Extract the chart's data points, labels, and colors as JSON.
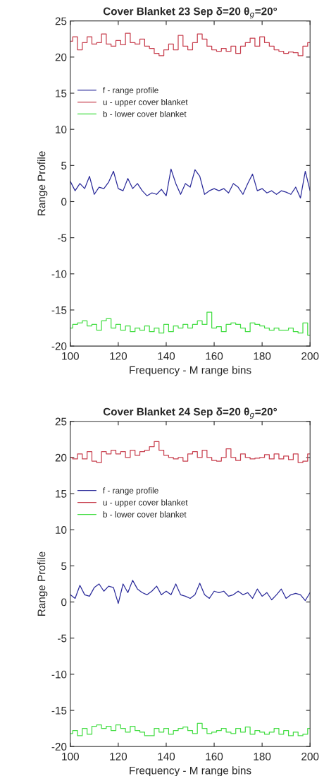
{
  "chart_data": [
    {
      "type": "line",
      "title": "Cover Blanket 23 Sep δ=20 θ$_{g}$=20°",
      "xlabel": "Frequency - M range bins",
      "ylabel": "Range Profile",
      "x": [
        100,
        102,
        104,
        106,
        108,
        110,
        112,
        114,
        116,
        118,
        120,
        122,
        124,
        126,
        128,
        130,
        132,
        134,
        136,
        138,
        140,
        142,
        144,
        146,
        148,
        150,
        152,
        154,
        156,
        158,
        160,
        162,
        164,
        166,
        168,
        170,
        172,
        174,
        176,
        178,
        180,
        182,
        184,
        186,
        188,
        190,
        192,
        194,
        196,
        198,
        200
      ],
      "series": [
        {
          "name": "f - range profile",
          "color": "#2b2b9a",
          "values": [
            2.8,
            1.5,
            2.5,
            1.8,
            3.5,
            1.0,
            2.0,
            1.8,
            2.7,
            4.2,
            1.8,
            1.5,
            3.2,
            1.8,
            2.5,
            1.5,
            0.8,
            1.2,
            1.0,
            1.7,
            0.8,
            4.5,
            2.5,
            1.0,
            2.5,
            2.0,
            4.4,
            3.5,
            1.0,
            1.5,
            1.8,
            1.5,
            1.8,
            1.2,
            2.5,
            2.0,
            1.0,
            2.5,
            3.8,
            1.5,
            1.8,
            1.2,
            1.5,
            1.0,
            1.5,
            1.3,
            1.0,
            2.0,
            0.5,
            4.2,
            1.5
          ]
        },
        {
          "name": "u - upper cover blanket",
          "type": "step",
          "color": "#c8404f",
          "values": [
            22.2,
            22.8,
            21.0,
            22.0,
            22.8,
            21.8,
            22.0,
            23.2,
            21.8,
            21.5,
            22.3,
            21.7,
            23.3,
            22.0,
            21.8,
            22.5,
            21.5,
            21.2,
            20.5,
            20.2,
            21.0,
            21.8,
            21.0,
            23.0,
            21.5,
            21.0,
            22.0,
            23.2,
            22.5,
            21.5,
            21.0,
            20.8,
            21.2,
            20.8,
            21.5,
            20.5,
            21.5,
            22.0,
            22.6,
            21.5,
            22.8,
            22.0,
            21.5,
            21.0,
            20.8,
            20.5,
            20.7,
            20.6,
            20.2,
            21.5,
            22.0
          ]
        },
        {
          "name": "b - lower cover blanket",
          "type": "step",
          "color": "#44dd44",
          "values": [
            -17.5,
            -17.0,
            -16.8,
            -16.5,
            -17.2,
            -17.0,
            -17.8,
            -16.5,
            -16.2,
            -17.5,
            -17.0,
            -17.8,
            -17.2,
            -18.0,
            -17.5,
            -17.8,
            -17.2,
            -18.0,
            -17.5,
            -18.2,
            -17.0,
            -18.0,
            -17.2,
            -17.5,
            -17.0,
            -17.5,
            -17.0,
            -16.5,
            -17.0,
            -15.3,
            -17.5,
            -17.3,
            -18.0,
            -17.0,
            -16.8,
            -17.0,
            -17.5,
            -18.0,
            -16.8,
            -17.0,
            -17.2,
            -17.5,
            -17.8,
            -17.5,
            -17.8,
            -17.8,
            -17.5,
            -18.0,
            -18.2,
            -16.8,
            -18.5
          ]
        }
      ],
      "xlim": [
        100,
        200
      ],
      "xticks": [
        100,
        120,
        140,
        160,
        180,
        200
      ],
      "ylim": [
        -20,
        25
      ],
      "yticks": [
        -20,
        -15,
        -10,
        -5,
        0,
        5,
        10,
        15,
        20,
        25
      ],
      "grid": false,
      "legend": "top left"
    },
    {
      "type": "line",
      "title": "Cover Blanket 24 Sep δ=20 θ$_{g}$=20°",
      "xlabel": "Frequency - M range bins",
      "ylabel": "Range Profile",
      "x": [
        100,
        102,
        104,
        106,
        108,
        110,
        112,
        114,
        116,
        118,
        120,
        122,
        124,
        126,
        128,
        130,
        132,
        134,
        136,
        138,
        140,
        142,
        144,
        146,
        148,
        150,
        152,
        154,
        156,
        158,
        160,
        162,
        164,
        166,
        168,
        170,
        172,
        174,
        176,
        178,
        180,
        182,
        184,
        186,
        188,
        190,
        192,
        194,
        196,
        198,
        200
      ],
      "series": [
        {
          "name": "f - range profile",
          "color": "#2b2b9a",
          "values": [
            1.0,
            0.5,
            2.3,
            1.0,
            0.8,
            2.0,
            2.5,
            1.5,
            2.2,
            2.0,
            -0.2,
            2.5,
            1.3,
            3.0,
            1.8,
            1.3,
            1.0,
            1.5,
            2.2,
            1.0,
            1.5,
            1.0,
            2.5,
            1.0,
            0.8,
            0.5,
            1.0,
            2.6,
            1.0,
            0.5,
            1.5,
            1.3,
            1.5,
            0.8,
            1.0,
            1.5,
            1.0,
            1.3,
            0.5,
            1.8,
            0.8,
            1.3,
            0.3,
            1.0,
            1.8,
            0.5,
            1.0,
            1.2,
            1.0,
            0.2,
            1.3
          ]
        },
        {
          "name": "u - upper cover blanket",
          "type": "step",
          "color": "#c8404f",
          "values": [
            20.0,
            19.8,
            20.5,
            19.8,
            20.8,
            19.5,
            19.3,
            20.8,
            20.5,
            21.0,
            20.5,
            20.8,
            20.0,
            21.0,
            20.3,
            20.8,
            21.0,
            21.5,
            22.2,
            21.0,
            20.3,
            20.0,
            19.8,
            20.0,
            19.5,
            20.5,
            20.8,
            20.0,
            21.0,
            20.0,
            19.6,
            19.5,
            20.0,
            21.2,
            20.0,
            19.6,
            20.5,
            20.0,
            19.8,
            19.9,
            20.0,
            20.4,
            19.8,
            20.5,
            19.8,
            20.2,
            19.7,
            20.5,
            19.3,
            19.5,
            20.5
          ]
        },
        {
          "name": "b - lower cover blanket",
          "type": "step",
          "color": "#44dd44",
          "values": [
            -18.2,
            -17.8,
            -18.5,
            -17.5,
            -18.3,
            -17.2,
            -17.0,
            -17.5,
            -17.2,
            -17.8,
            -17.0,
            -17.5,
            -18.0,
            -17.2,
            -17.8,
            -18.0,
            -18.5,
            -18.5,
            -17.5,
            -18.0,
            -17.5,
            -18.3,
            -17.8,
            -17.5,
            -17.3,
            -17.8,
            -18.2,
            -16.8,
            -17.5,
            -18.2,
            -18.0,
            -17.8,
            -17.5,
            -18.0,
            -18.2,
            -17.5,
            -18.0,
            -17.3,
            -18.3,
            -17.8,
            -18.0,
            -18.3,
            -18.0,
            -17.5,
            -18.3,
            -17.8,
            -18.5,
            -18.0,
            -18.5,
            -18.3,
            -17.5
          ]
        }
      ],
      "xlim": [
        100,
        200
      ],
      "xticks": [
        100,
        120,
        140,
        160,
        180,
        200
      ],
      "ylim": [
        -20,
        25
      ],
      "yticks": [
        -20,
        -15,
        -10,
        -5,
        0,
        5,
        10,
        15,
        20,
        25
      ],
      "grid": false,
      "legend": "top left"
    }
  ]
}
